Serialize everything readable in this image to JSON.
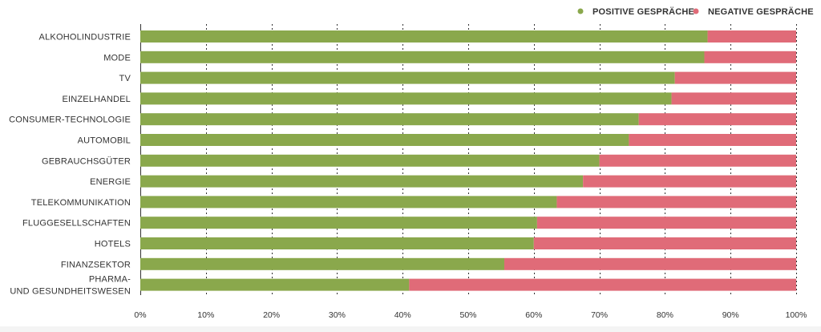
{
  "colors": {
    "positive": "#8aa84c",
    "negative": "#e06b78"
  },
  "chart_data": {
    "type": "bar",
    "orientation": "horizontal",
    "stacked": true,
    "categories": [
      "ALKOHOLINDUSTRIE",
      "MODE",
      "TV",
      "EINZELHANDEL",
      "CONSUMER-TECHNOLOGIE",
      "AUTOMOBIL",
      "GEBRAUCHSGÜTER",
      "ENERGIE",
      "TELEKOMMUNIKATION",
      "FLUGGESELLSCHAFTEN",
      "HOTELS",
      "FINANZSEKTOR",
      "PHARMA- UND GESUNDHEITSWESEN"
    ],
    "category_lines": [
      [
        "ALKOHOLINDUSTRIE"
      ],
      [
        "MODE"
      ],
      [
        "TV"
      ],
      [
        "EINZELHANDEL"
      ],
      [
        "CONSUMER-TECHNOLOGIE"
      ],
      [
        "AUTOMOBIL"
      ],
      [
        "GEBRAUCHSGÜTER"
      ],
      [
        "ENERGIE"
      ],
      [
        "TELEKOMMUNIKATION"
      ],
      [
        "FLUGGESELLSCHAFTEN"
      ],
      [
        "HOTELS"
      ],
      [
        "FINANZSEKTOR"
      ],
      [
        "PHARMA-",
        "UND GESUNDHEITSWESEN"
      ]
    ],
    "series": [
      {
        "name": "POSITIVE GESPRÄCHE",
        "color": "#8aa84c",
        "values": [
          86.5,
          86,
          81.5,
          81,
          76,
          74.5,
          70,
          67.5,
          63.5,
          60.5,
          60,
          55.5,
          41
        ]
      },
      {
        "name": "NEGATIVE GESPRÄCHE",
        "color": "#e06b78",
        "values": [
          13.5,
          14,
          18.5,
          19,
          24,
          25.5,
          30,
          32.5,
          36.5,
          39.5,
          40,
          44.5,
          59
        ]
      }
    ],
    "xlim": [
      0,
      100
    ],
    "x_ticks": [
      "0%",
      "10%",
      "20%",
      "30%",
      "40%",
      "50%",
      "60%",
      "70%",
      "80%",
      "90%",
      "100%"
    ],
    "grid": true,
    "legend_position": "top-right"
  }
}
